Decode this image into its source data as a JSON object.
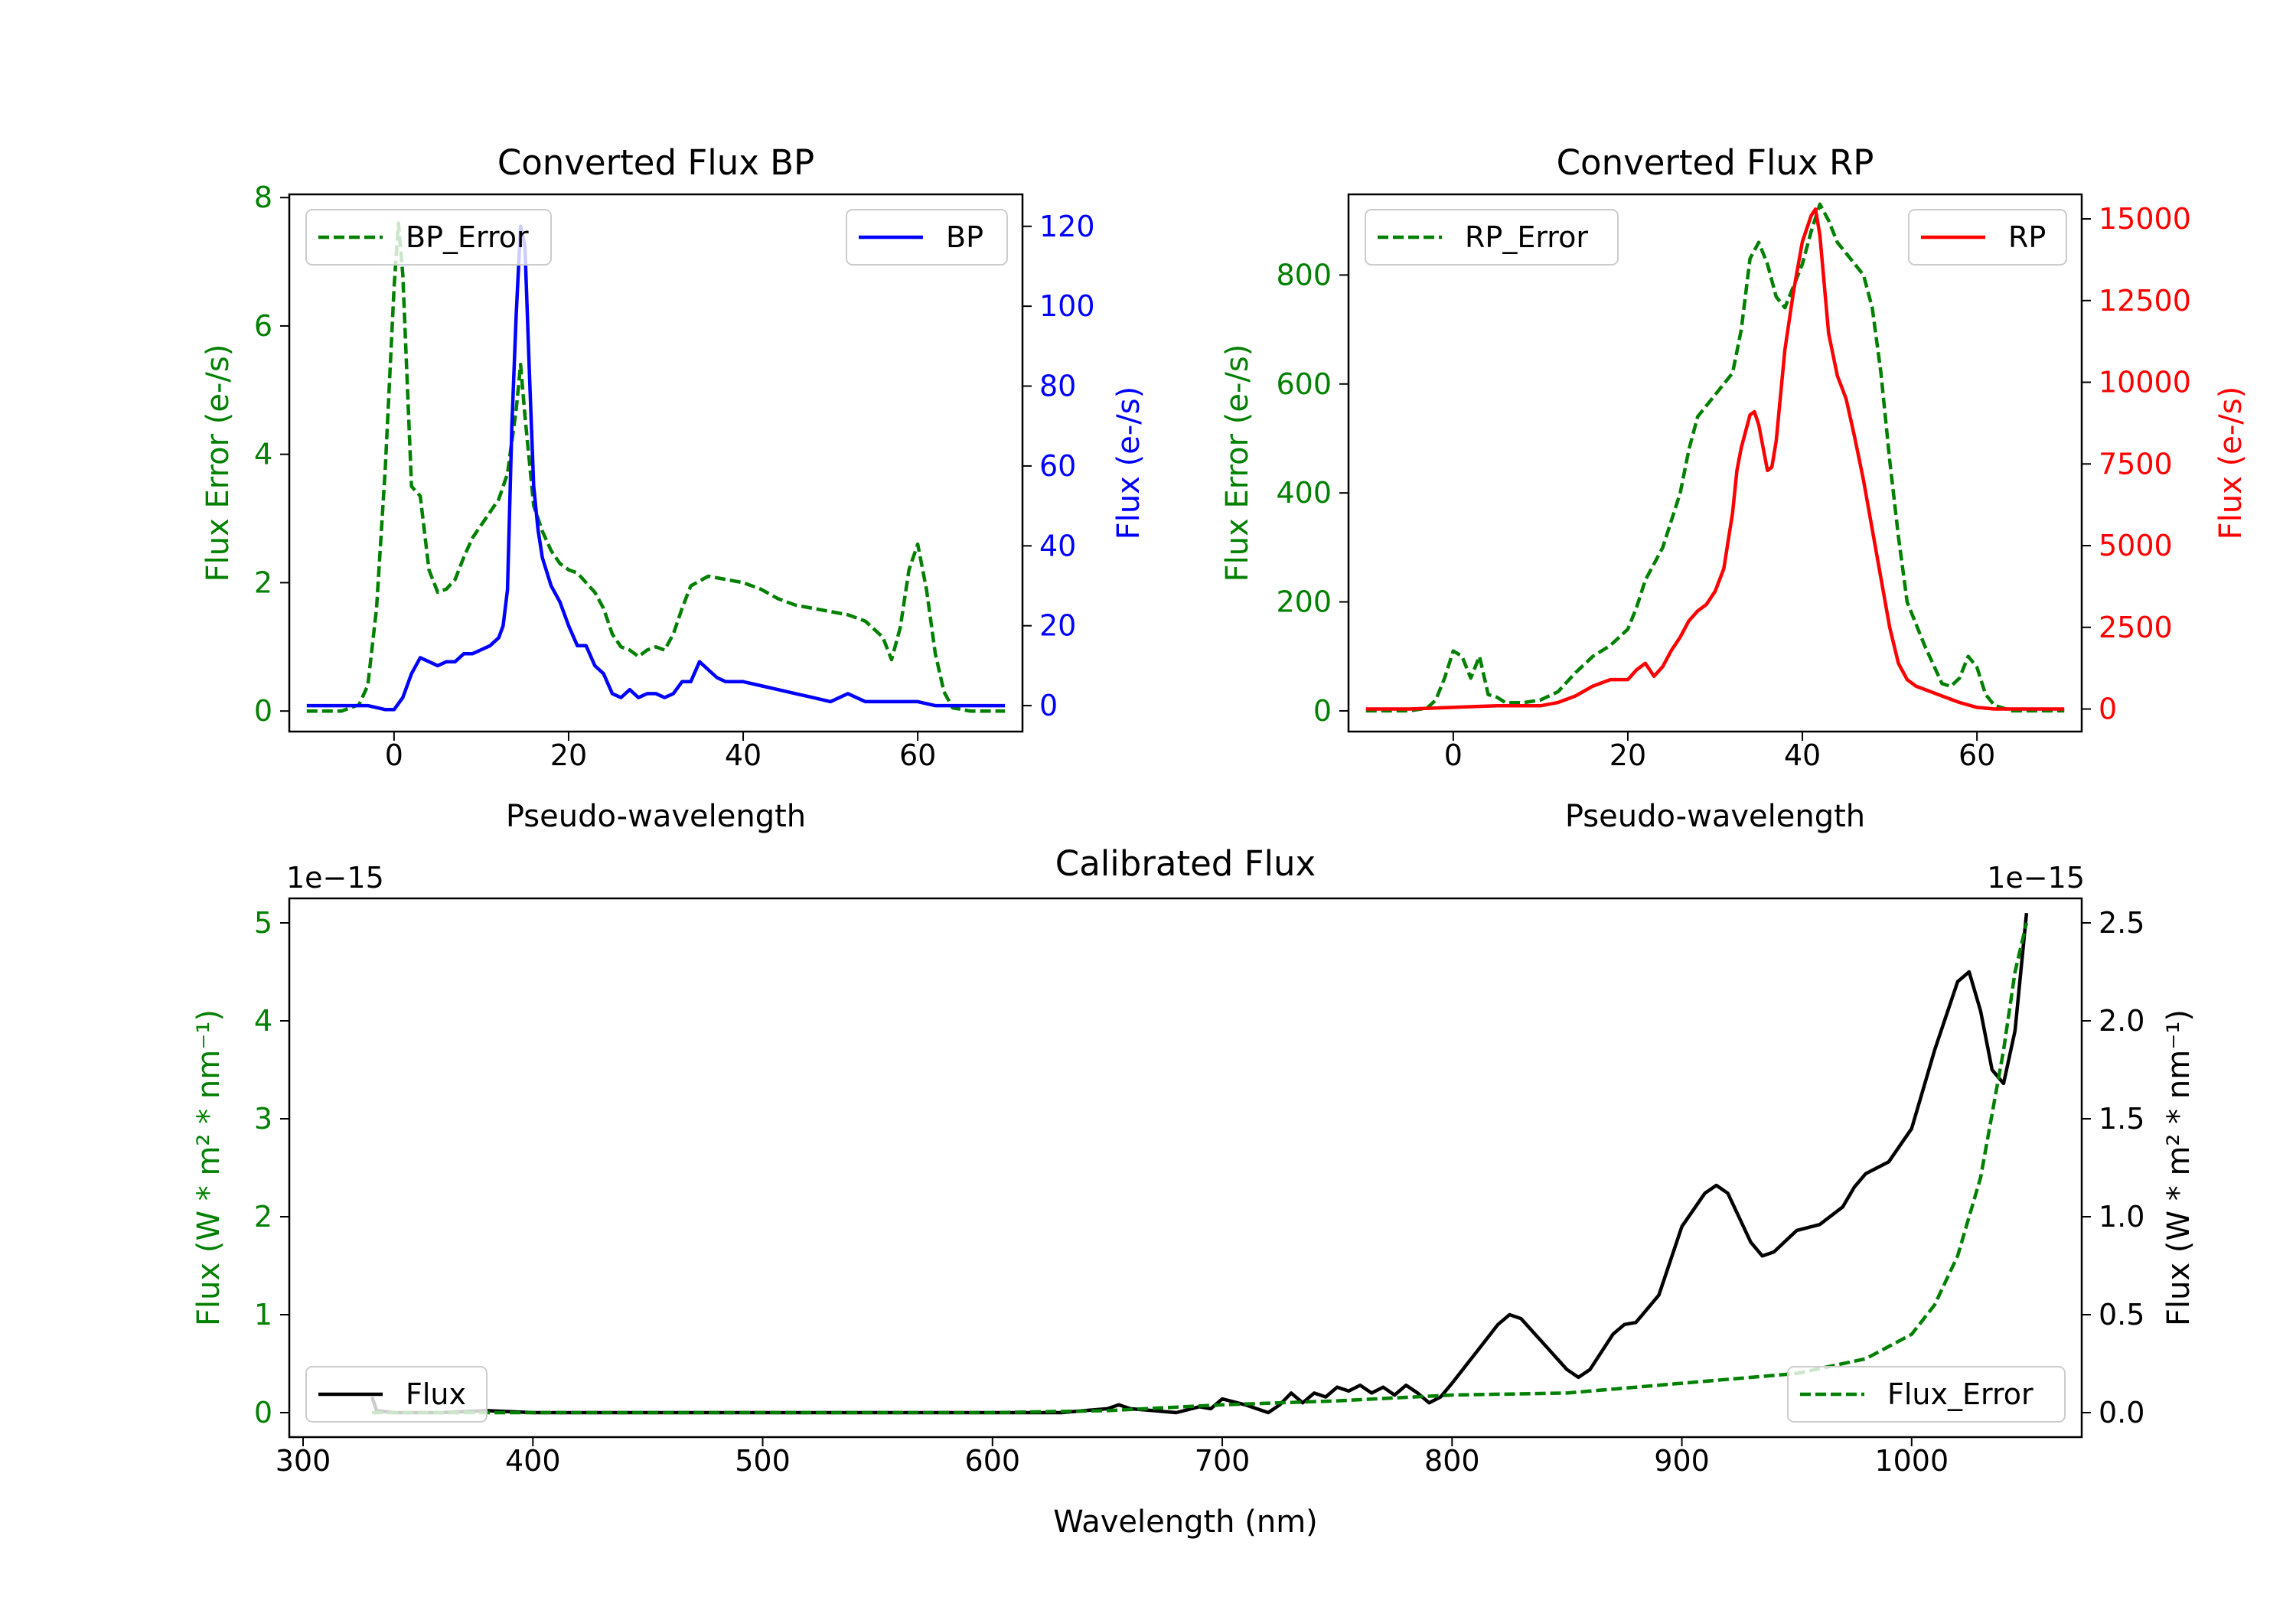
{
  "chart_data": [
    {
      "type": "line",
      "title": "Converted Flux BP",
      "xlabel": "Pseudo-wavelength",
      "xlim": [
        -12,
        72
      ],
      "xticks": [
        "0",
        "20",
        "40",
        "60"
      ],
      "left_axis": {
        "label": "Flux Error (e-/s)",
        "color": "#008000",
        "ylim": [
          -0.32,
          8.05
        ],
        "ticks": [
          "0",
          "2",
          "4",
          "6",
          "8"
        ]
      },
      "right_axis": {
        "label": "Flux (e-/s)",
        "color": "#0000ff",
        "ylim": [
          -6.5,
          128
        ],
        "ticks": [
          "0",
          "20",
          "40",
          "60",
          "80",
          "100",
          "120"
        ]
      },
      "series": [
        {
          "name": "BP_Error",
          "axis": "left",
          "style": "dashed",
          "color": "#008000",
          "x": [
            -10,
            -6,
            -4,
            -3,
            -2,
            -1,
            0,
            0.5,
            1,
            2,
            3,
            4,
            5,
            6,
            7,
            8,
            9,
            10,
            11,
            12,
            13,
            14,
            14.5,
            15,
            16,
            17,
            18,
            19,
            20,
            21,
            22,
            23,
            24,
            25,
            26,
            27,
            28,
            29,
            30,
            31,
            32,
            33,
            34,
            36,
            38,
            40,
            42,
            44,
            46,
            48,
            50,
            52,
            54,
            56,
            57,
            58,
            59,
            60,
            61,
            62,
            63,
            64,
            66,
            70
          ],
          "values": [
            0,
            0,
            0.1,
            0.4,
            1.6,
            3.8,
            6.6,
            7.6,
            6.8,
            3.5,
            3.35,
            2.2,
            1.85,
            1.9,
            2.05,
            2.4,
            2.7,
            2.9,
            3.1,
            3.3,
            3.7,
            4.7,
            5.4,
            4.6,
            3.2,
            2.8,
            2.5,
            2.3,
            2.2,
            2.15,
            2.0,
            1.85,
            1.6,
            1.2,
            1.0,
            0.95,
            0.85,
            0.95,
            1.0,
            0.95,
            1.2,
            1.6,
            1.95,
            2.1,
            2.05,
            2.0,
            1.9,
            1.75,
            1.65,
            1.6,
            1.55,
            1.5,
            1.4,
            1.15,
            0.8,
            1.3,
            2.2,
            2.6,
            1.9,
            0.9,
            0.3,
            0.05,
            0,
            0
          ]
        },
        {
          "name": "BP",
          "axis": "right",
          "style": "solid",
          "color": "#0000ff",
          "x": [
            -10,
            -6,
            -3,
            -1,
            0,
            1,
            2,
            3,
            4,
            5,
            6,
            7,
            8,
            9,
            10,
            11,
            12,
            12.5,
            13,
            13.5,
            14,
            14.5,
            15,
            15.5,
            16,
            16.5,
            17,
            18,
            19,
            20,
            21,
            22,
            23,
            24,
            25,
            26,
            27,
            28,
            29,
            30,
            31,
            32,
            33,
            34,
            35,
            36,
            37,
            38,
            40,
            42,
            44,
            46,
            48,
            50,
            52,
            54,
            56,
            58,
            60,
            62,
            70
          ],
          "values": [
            0,
            0,
            0,
            -1,
            -1,
            2,
            8,
            12,
            11,
            10,
            11,
            11,
            13,
            13,
            14,
            15,
            17,
            20,
            29,
            70,
            98,
            120,
            115,
            84,
            55,
            44,
            37,
            30,
            26,
            20,
            15,
            15,
            10,
            8,
            3,
            2,
            4,
            2,
            3,
            3,
            2,
            3,
            6,
            6,
            11,
            9,
            7,
            6,
            6,
            5,
            4,
            3,
            2,
            1,
            3,
            1,
            1,
            1,
            1,
            0,
            0
          ]
        }
      ],
      "legend": [
        {
          "label": "BP_Error",
          "position": "upper-left"
        },
        {
          "label": "BP",
          "position": "upper-right"
        }
      ]
    },
    {
      "type": "line",
      "title": "Converted Flux RP",
      "xlabel": "Pseudo-wavelength",
      "xlim": [
        -12,
        72
      ],
      "xticks": [
        "0",
        "20",
        "40",
        "60"
      ],
      "left_axis": {
        "label": "Flux Error (e-/s)",
        "color": "#008000",
        "ylim": [
          -38,
          948
        ],
        "ticks": [
          "0",
          "200",
          "400",
          "600",
          "800"
        ]
      },
      "right_axis": {
        "label": "Flux (e-/s)",
        "color": "#ff0000",
        "ylim": [
          -690,
          15750
        ],
        "ticks": [
          "0",
          "2500",
          "5000",
          "7500",
          "10000",
          "12500",
          "15000"
        ]
      },
      "series": [
        {
          "name": "RP_Error",
          "axis": "left",
          "style": "dashed",
          "color": "#008000",
          "x": [
            -10,
            -5,
            -3,
            -2,
            -1,
            0,
            1,
            2,
            3,
            4,
            5,
            6,
            8,
            10,
            12,
            14,
            16,
            18,
            20,
            21,
            22,
            24,
            26,
            27,
            28,
            30,
            32,
            33,
            34,
            35,
            36,
            37,
            38,
            40,
            41,
            42,
            43,
            44,
            46,
            47,
            48,
            49,
            50,
            51,
            52,
            54,
            56,
            57,
            58,
            59,
            60,
            61,
            62,
            64,
            66,
            70
          ],
          "values": [
            0,
            0,
            5,
            20,
            60,
            110,
            100,
            60,
            100,
            30,
            25,
            15,
            15,
            20,
            35,
            70,
            100,
            120,
            150,
            190,
            240,
            300,
            400,
            480,
            540,
            580,
            620,
            700,
            830,
            860,
            820,
            760,
            740,
            820,
            880,
            930,
            900,
            860,
            820,
            800,
            740,
            620,
            460,
            320,
            200,
            120,
            50,
            45,
            60,
            100,
            80,
            30,
            10,
            0,
            0,
            0
          ]
        },
        {
          "name": "RP",
          "axis": "right",
          "style": "solid",
          "color": "#ff0000",
          "x": [
            -10,
            -5,
            0,
            5,
            10,
            12,
            14,
            16,
            18,
            20,
            21,
            22,
            23,
            24,
            25,
            26,
            27,
            28,
            29,
            30,
            31,
            32,
            32.5,
            33,
            34,
            34.5,
            35,
            36,
            36.5,
            37,
            38,
            39,
            40,
            41,
            41.5,
            42,
            43,
            44,
            45,
            46,
            47,
            48,
            49,
            50,
            51,
            52,
            53,
            54,
            56,
            58,
            60,
            62,
            64,
            70
          ],
          "values": [
            0,
            0,
            50,
            100,
            100,
            200,
            400,
            700,
            900,
            900,
            1200,
            1400,
            1000,
            1300,
            1800,
            2200,
            2700,
            3000,
            3200,
            3600,
            4300,
            6000,
            7300,
            8000,
            9000,
            9100,
            8700,
            7300,
            7400,
            8200,
            11000,
            12800,
            14300,
            15100,
            15300,
            14500,
            11500,
            10200,
            9500,
            8300,
            7000,
            5500,
            4000,
            2500,
            1400,
            900,
            700,
            600,
            400,
            200,
            50,
            0,
            0,
            0
          ]
        }
      ],
      "legend": [
        {
          "label": "RP_Error",
          "position": "upper-left"
        },
        {
          "label": "RP",
          "position": "upper-right"
        }
      ]
    },
    {
      "type": "line",
      "title": "Calibrated Flux",
      "xlabel": "Wavelength (nm)",
      "xlim": [
        294,
        1074
      ],
      "xticks": [
        "300",
        "400",
        "500",
        "600",
        "700",
        "800",
        "900",
        "1000"
      ],
      "left_axis": {
        "label": "Flux (W * m² * nm⁻¹)",
        "color": "#008000",
        "ylim": [
          -0.25,
          5.25
        ],
        "ticks": [
          "0",
          "1",
          "2",
          "3",
          "4",
          "5"
        ],
        "offset": "1e−15"
      },
      "right_axis": {
        "label": "Flux (W * m² * nm⁻¹)",
        "color": "#000000",
        "ylim": [
          -0.125,
          2.625
        ],
        "ticks": [
          "0.0",
          "0.5",
          "1.0",
          "1.5",
          "2.0",
          "2.5"
        ],
        "offset": "1e−15"
      },
      "series": [
        {
          "name": "Flux",
          "axis": "right",
          "style": "solid",
          "color": "#000000",
          "x": [
            330,
            332,
            340,
            360,
            380,
            400,
            450,
            500,
            550,
            600,
            630,
            640,
            650,
            655,
            660,
            670,
            680,
            690,
            695,
            700,
            710,
            720,
            725,
            730,
            735,
            740,
            745,
            750,
            755,
            760,
            765,
            770,
            775,
            780,
            785,
            790,
            795,
            800,
            810,
            820,
            825,
            830,
            840,
            850,
            855,
            860,
            870,
            875,
            880,
            890,
            900,
            910,
            915,
            920,
            930,
            935,
            940,
            950,
            960,
            970,
            975,
            980,
            990,
            1000,
            1010,
            1020,
            1025,
            1030,
            1035,
            1040,
            1045,
            1050
          ],
          "values": [
            0.08,
            0.01,
            0.0,
            0.0,
            0.01,
            0.0,
            0.0,
            0.0,
            0.0,
            0.0,
            0.0,
            0.01,
            0.02,
            0.04,
            0.02,
            0.01,
            0.0,
            0.03,
            0.02,
            0.07,
            0.04,
            0.0,
            0.04,
            0.1,
            0.05,
            0.1,
            0.08,
            0.13,
            0.11,
            0.14,
            0.1,
            0.13,
            0.09,
            0.14,
            0.1,
            0.05,
            0.08,
            0.15,
            0.3,
            0.45,
            0.5,
            0.48,
            0.35,
            0.22,
            0.18,
            0.22,
            0.4,
            0.45,
            0.46,
            0.6,
            0.95,
            1.12,
            1.16,
            1.12,
            0.87,
            0.8,
            0.82,
            0.93,
            0.96,
            1.05,
            1.15,
            1.22,
            1.28,
            1.45,
            1.85,
            2.2,
            2.25,
            2.05,
            1.75,
            1.68,
            1.95,
            2.55
          ]
        },
        {
          "name": "Flux_Error",
          "axis": "left",
          "style": "dashed",
          "color": "#008000",
          "x": [
            330,
            400,
            500,
            600,
            650,
            700,
            750,
            800,
            850,
            900,
            950,
            980,
            1000,
            1010,
            1020,
            1030,
            1040,
            1045,
            1050
          ],
          "values": [
            0.0,
            0.0,
            0.0,
            0.0,
            0.02,
            0.08,
            0.12,
            0.18,
            0.2,
            0.3,
            0.4,
            0.55,
            0.8,
            1.1,
            1.6,
            2.4,
            3.7,
            4.5,
            5.0
          ]
        }
      ],
      "legend": [
        {
          "label": "Flux",
          "position": "lower-left"
        },
        {
          "label": "Flux_Error",
          "position": "lower-right"
        }
      ]
    }
  ]
}
